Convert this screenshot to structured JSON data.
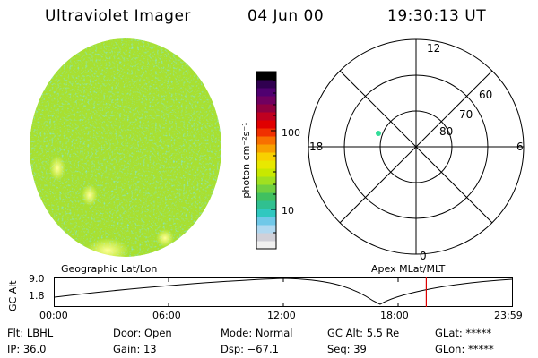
{
  "header": {
    "title": "Ultraviolet Imager",
    "date": "04 Jun 00",
    "time": "19:30:13 UT"
  },
  "colorbar": {
    "unit_label": "photon cm⁻²s⁻¹",
    "tick_100": "100",
    "tick_10": "10",
    "colors": [
      "#f0f0f0",
      "#d0d0d8",
      "#b0d8f0",
      "#70c8e8",
      "#30c8c0",
      "#30c090",
      "#40c060",
      "#70d040",
      "#a0e020",
      "#c8e800",
      "#e8e800",
      "#f8d000",
      "#f8a000",
      "#f87000",
      "#f03000",
      "#e00000",
      "#c00020",
      "#900040",
      "#700060",
      "#500070",
      "#300050",
      "#000000"
    ]
  },
  "polar_plot": {
    "mlt_labels": {
      "top": "12",
      "left": "18",
      "right": "6",
      "bottom": "0"
    },
    "lat_labels": [
      "60",
      "70",
      "80"
    ],
    "marker_color": "#33dd99"
  },
  "timeline": {
    "left_label": "Geographic Lat/Lon",
    "right_label": "Apex MLat/MLT",
    "y_axis_title": "GC Alt",
    "y_ticks": [
      "9.0",
      "1.8"
    ],
    "x_ticks": [
      "00:00",
      "06:00",
      "12:00",
      "18:00",
      "23:59"
    ],
    "current_time_fraction": 0.8125,
    "marker_color": "#dd0000"
  },
  "info": {
    "flt": "Flt: LBHL",
    "ip": "IP: 36.0",
    "door": "Door: Open",
    "gain": "Gain: 13",
    "mode": "Mode: Normal",
    "dsp": "Dsp:  −67.1",
    "gcalt": "GC Alt: 5.5 Re",
    "seq": "Seq: 39",
    "glat": "GLat: *****",
    "glon": "GLon: *****"
  }
}
